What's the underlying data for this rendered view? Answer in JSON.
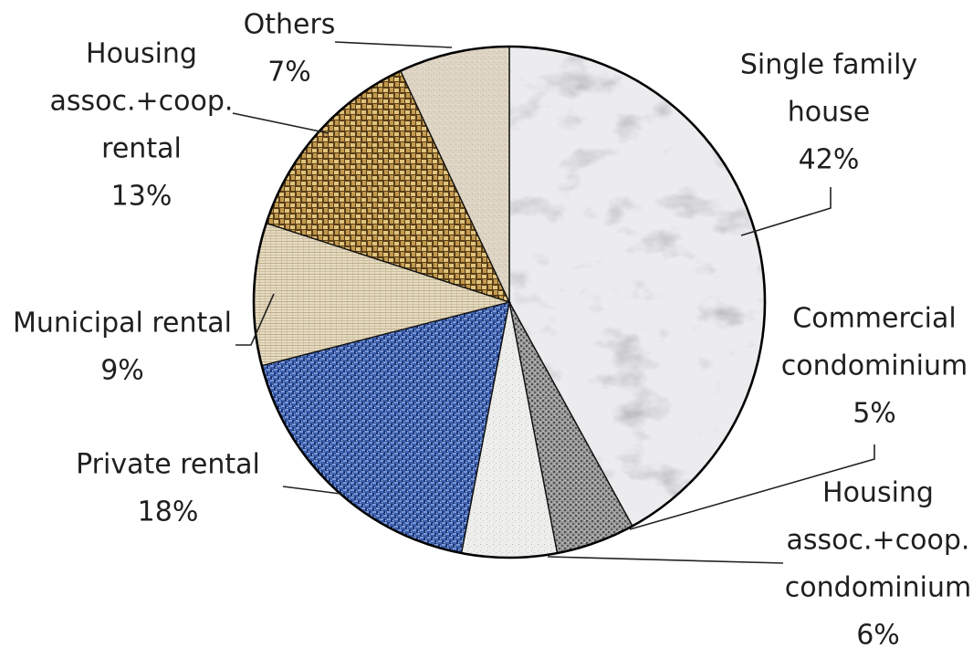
{
  "chart_data": {
    "type": "pie",
    "title": "",
    "slices": [
      {
        "label": [
          "Single family",
          "house"
        ],
        "pct": "42%",
        "value": 42,
        "color": "#e6e6e9",
        "pattern": "marble"
      },
      {
        "label": [
          "Commercial",
          "condominium"
        ],
        "pct": "5%",
        "value": 5,
        "color": "#8c8c8c",
        "pattern": "gray-speckle"
      },
      {
        "label": [
          "Housing",
          "assoc.+coop.",
          "condominium"
        ],
        "pct": "6%",
        "value": 6,
        "color": "#e9e9e6",
        "pattern": "light-speckle"
      },
      {
        "label": [
          "Private rental"
        ],
        "pct": "18%",
        "value": 18,
        "color": "#3f63b0",
        "pattern": "blue-weave"
      },
      {
        "label": [
          "Municipal rental"
        ],
        "pct": "9%",
        "value": 9,
        "color": "#dccfb2",
        "pattern": "linen"
      },
      {
        "label": [
          "Housing",
          "assoc.+coop.",
          "rental"
        ],
        "pct": "13%",
        "value": 13,
        "color": "#b38e47",
        "pattern": "wicker"
      },
      {
        "label": [
          "Others"
        ],
        "pct": "7%",
        "value": 7,
        "color": "#ddd2c0",
        "pattern": "sand"
      }
    ]
  }
}
